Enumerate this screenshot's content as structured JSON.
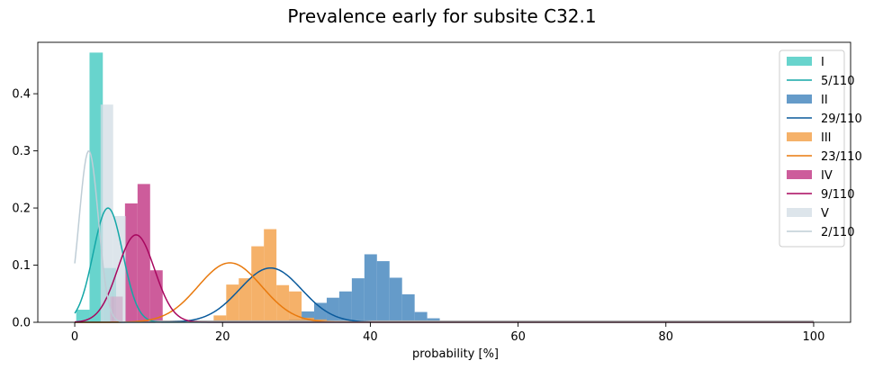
{
  "chart_data": {
    "type": "histogram",
    "title": "Prevalence early for subsite C32.1",
    "xlabel": "probability [%]",
    "ylabel": "",
    "xlim": [
      -5,
      105
    ],
    "ylim": [
      0,
      0.49
    ],
    "xticks": [
      0,
      20,
      40,
      60,
      80,
      100
    ],
    "yticks": [
      0.0,
      0.1,
      0.2,
      0.3,
      0.4
    ],
    "legend_position": "top-right",
    "grid": false,
    "series": [
      {
        "name": "I",
        "curve_label": "5/110",
        "color": "#4ecdc4",
        "curve_color": "#13a7a7",
        "fill_opacity": 0.85,
        "bin_width": 1.8,
        "bins": [
          [
            0.2,
            0.022
          ],
          [
            2.0,
            0.472
          ],
          [
            3.8,
            0.095
          ],
          [
            5.6,
            0.0
          ]
        ],
        "curve": {
          "mu": 4.5,
          "sigma": 2.0,
          "peak": 0.2
        }
      },
      {
        "name": "II",
        "curve_label": "29/110",
        "color": "#4a89bf",
        "curve_color": "#0a5a9c",
        "fill_opacity": 0.85,
        "bin_width": 1.7,
        "bins": [
          [
            29.0,
            0.005
          ],
          [
            30.7,
            0.019
          ],
          [
            32.4,
            0.034
          ],
          [
            34.1,
            0.043
          ],
          [
            35.8,
            0.054
          ],
          [
            37.5,
            0.077
          ],
          [
            39.2,
            0.119
          ],
          [
            40.9,
            0.107
          ],
          [
            42.6,
            0.078
          ],
          [
            44.3,
            0.049
          ],
          [
            46.0,
            0.018
          ],
          [
            47.7,
            0.007
          ]
        ],
        "curve": {
          "mu": 26.5,
          "sigma": 4.2,
          "peak": 0.095
        }
      },
      {
        "name": "III",
        "curve_label": "23/110",
        "color": "#f3a34f",
        "curve_color": "#e8790d",
        "fill_opacity": 0.85,
        "bin_width": 1.7,
        "bins": [
          [
            18.8,
            0.012
          ],
          [
            20.5,
            0.066
          ],
          [
            22.2,
            0.077
          ],
          [
            23.9,
            0.133
          ],
          [
            25.6,
            0.163
          ],
          [
            27.3,
            0.065
          ],
          [
            29.0,
            0.054
          ],
          [
            30.7,
            0.008
          ],
          [
            32.4,
            0.005
          ]
        ],
        "curve": {
          "mu": 21.0,
          "sigma": 4.3,
          "peak": 0.104
        }
      },
      {
        "name": "IV",
        "curve_label": "9/110",
        "color": "#c4408a",
        "curve_color": "#a8075f",
        "fill_opacity": 0.85,
        "bin_width": 1.7,
        "bins": [
          [
            4.8,
            0.045
          ],
          [
            6.5,
            0.0
          ],
          [
            6.8,
            0.208
          ],
          [
            8.5,
            0.242
          ],
          [
            10.2,
            0.091
          ]
        ],
        "curve": {
          "mu": 8.3,
          "sigma": 2.5,
          "peak": 0.153
        }
      },
      {
        "name": "V",
        "curve_label": "2/110",
        "color": "#d2dce4",
        "curve_color": "#bfcdd6",
        "fill_opacity": 0.75,
        "bin_width": 1.7,
        "bins": [
          [
            0.0,
            0.0
          ],
          [
            3.5,
            0.381
          ],
          [
            5.2,
            0.186
          ]
        ],
        "curve": {
          "mu": 1.9,
          "sigma": 1.3,
          "peak": 0.3
        }
      }
    ]
  }
}
